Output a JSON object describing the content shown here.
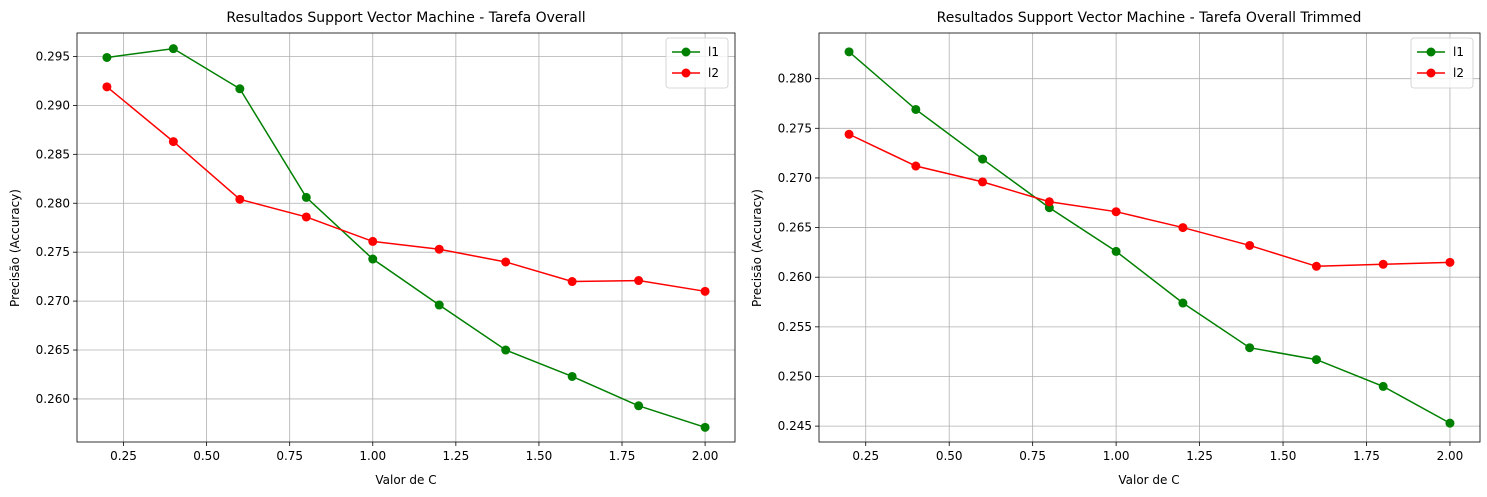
{
  "colors": {
    "l1": "#008000",
    "l2": "#ff0000",
    "grid": "#b0b0b0",
    "axes": "#000000"
  },
  "chart_data": [
    {
      "type": "line",
      "title": "Resultados Support Vector Machine - Tarefa Overall",
      "xlabel": "Valor de C",
      "ylabel": "Precisão (Accuracy)",
      "x": [
        0.2,
        0.4,
        0.6,
        0.8,
        1.0,
        1.2,
        1.4,
        1.6,
        1.8,
        2.0
      ],
      "series": [
        {
          "name": "l1",
          "color": "#008000",
          "values": [
            0.2949,
            0.2958,
            0.2917,
            0.2806,
            0.2743,
            0.2696,
            0.265,
            0.2623,
            0.2593,
            0.2571
          ]
        },
        {
          "name": "l2",
          "color": "#ff0000",
          "values": [
            0.2919,
            0.2863,
            0.2804,
            0.2786,
            0.2761,
            0.2753,
            0.274,
            0.272,
            0.2721,
            0.271
          ]
        }
      ],
      "xlim": [
        0.11,
        2.09
      ],
      "ylim": [
        0.2556,
        0.2974
      ],
      "xticks": [
        0.25,
        0.5,
        0.75,
        1.0,
        1.25,
        1.5,
        1.75,
        2.0
      ],
      "xtick_labels": [
        "0.25",
        "0.50",
        "0.75",
        "1.00",
        "1.25",
        "1.50",
        "1.75",
        "2.00"
      ],
      "yticks": [
        0.26,
        0.265,
        0.27,
        0.275,
        0.28,
        0.285,
        0.29,
        0.295
      ],
      "ytick_labels": [
        "0.260",
        "0.265",
        "0.270",
        "0.275",
        "0.280",
        "0.285",
        "0.290",
        "0.295"
      ],
      "grid": true,
      "legend": "top-right"
    },
    {
      "type": "line",
      "title": "Resultados Support Vector Machine - Tarefa Overall Trimmed",
      "xlabel": "Valor de C",
      "ylabel": "Precisão (Accuracy)",
      "x": [
        0.2,
        0.4,
        0.6,
        0.8,
        1.0,
        1.2,
        1.4,
        1.6,
        1.8,
        2.0
      ],
      "series": [
        {
          "name": "l1",
          "color": "#008000",
          "values": [
            0.2827,
            0.2769,
            0.2719,
            0.267,
            0.2626,
            0.2574,
            0.2529,
            0.2517,
            0.249,
            0.2453
          ]
        },
        {
          "name": "l2",
          "color": "#ff0000",
          "values": [
            0.2744,
            0.2712,
            0.2696,
            0.2676,
            0.2666,
            0.265,
            0.2632,
            0.2611,
            0.2613,
            0.2615
          ]
        }
      ],
      "xlim": [
        0.11,
        2.09
      ],
      "ylim": [
        0.2434,
        0.2846
      ],
      "xticks": [
        0.25,
        0.5,
        0.75,
        1.0,
        1.25,
        1.5,
        1.75,
        2.0
      ],
      "xtick_labels": [
        "0.25",
        "0.50",
        "0.75",
        "1.00",
        "1.25",
        "1.50",
        "1.75",
        "2.00"
      ],
      "yticks": [
        0.245,
        0.25,
        0.255,
        0.26,
        0.265,
        0.27,
        0.275,
        0.28
      ],
      "ytick_labels": [
        "0.245",
        "0.250",
        "0.255",
        "0.260",
        "0.265",
        "0.270",
        "0.275",
        "0.280"
      ],
      "grid": true,
      "legend": "top-right"
    }
  ]
}
